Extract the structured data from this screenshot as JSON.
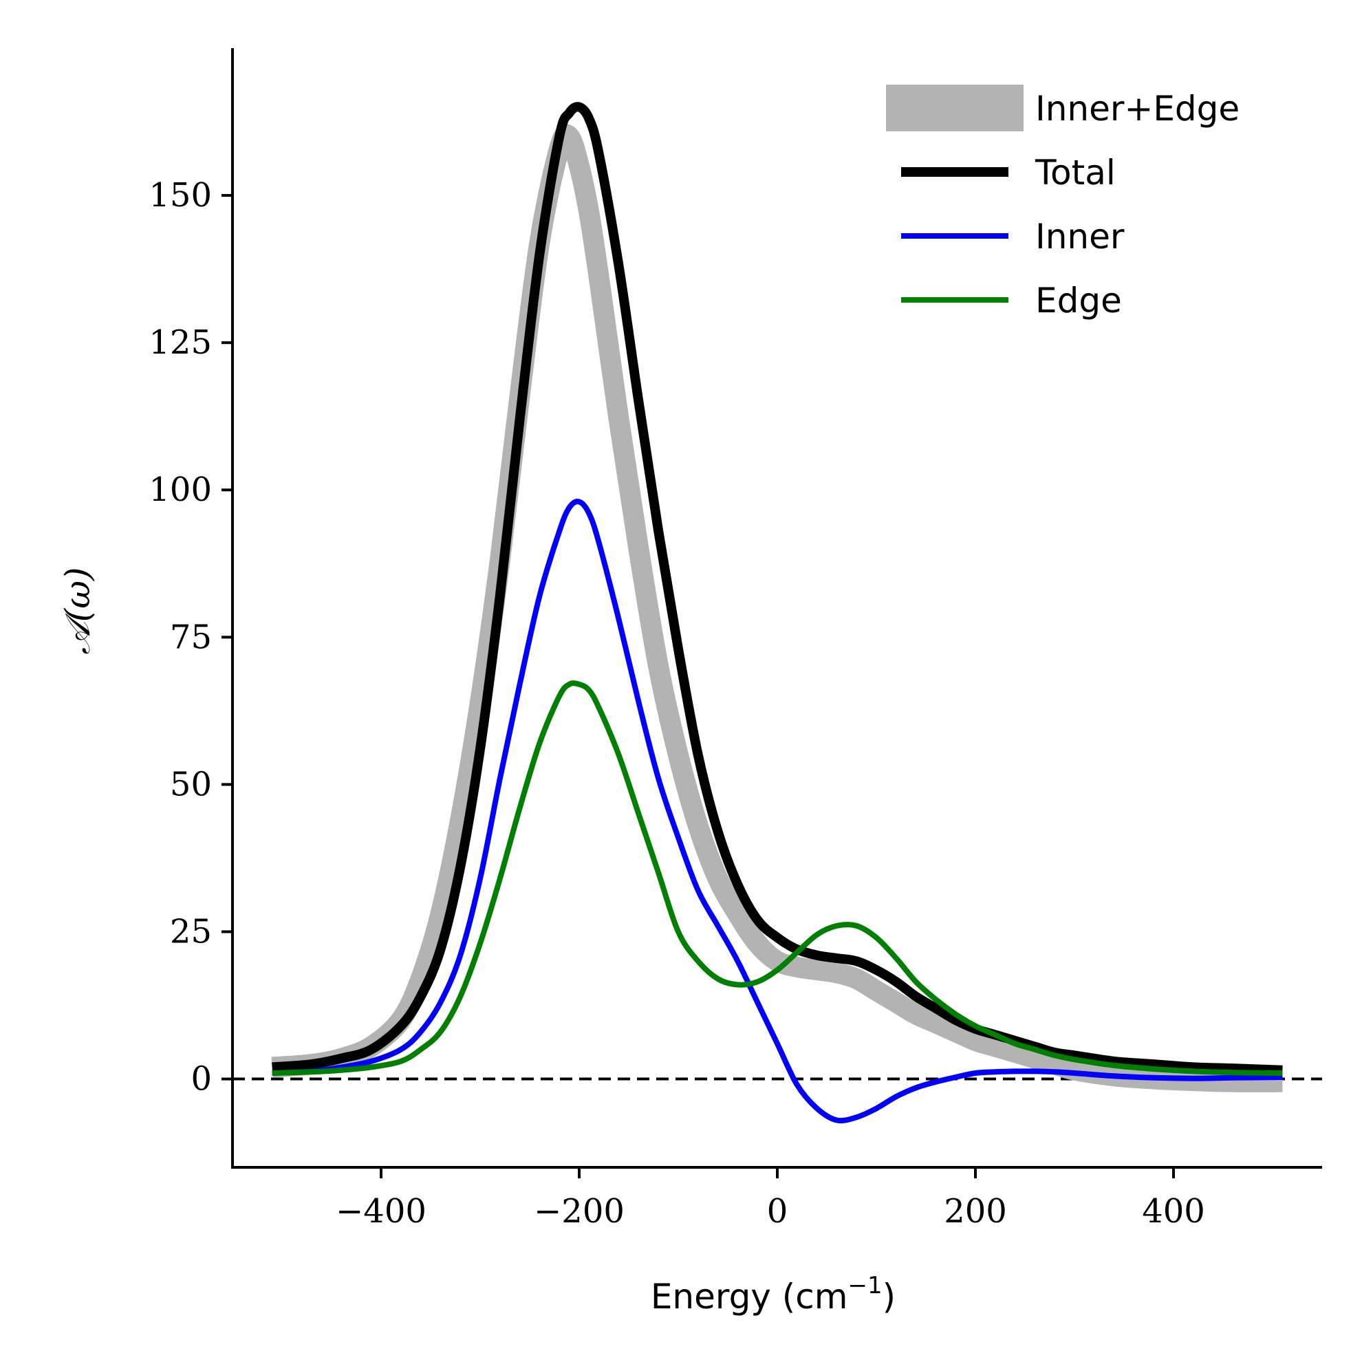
{
  "chart_data": {
    "type": "line",
    "title": "",
    "xlabel": "Energy (cm",
    "xlabel_superscript": "−1",
    "xlabel_suffix": ")",
    "ylabel": "𝒜(ω)",
    "xlim": [
      -550,
      550
    ],
    "ylim": [
      -15,
      175
    ],
    "xticks": [
      -400,
      -200,
      0,
      200,
      400
    ],
    "xtick_labels": [
      "−400",
      "−200",
      "0",
      "200",
      "400"
    ],
    "yticks": [
      0,
      25,
      50,
      75,
      100,
      125,
      150
    ],
    "ytick_labels": [
      "0",
      "25",
      "50",
      "75",
      "100",
      "125",
      "150"
    ],
    "zero_line": {
      "y": 0,
      "style": "dashed",
      "color": "#000000"
    },
    "legend_position": "top-right",
    "x": [
      -510,
      -470,
      -440,
      -410,
      -380,
      -360,
      -340,
      -320,
      -300,
      -280,
      -260,
      -240,
      -220,
      -210,
      -200,
      -190,
      -180,
      -160,
      -140,
      -120,
      -100,
      -80,
      -60,
      -40,
      -20,
      0,
      20,
      40,
      60,
      80,
      100,
      120,
      140,
      160,
      180,
      200,
      220,
      240,
      260,
      280,
      300,
      340,
      380,
      420,
      460,
      510
    ],
    "series": [
      {
        "name": "Inner+Edge",
        "color": "#b3b3b3",
        "values": [
          2,
          2.5,
          3.5,
          5.5,
          10,
          17,
          28,
          44,
          64,
          88,
          116,
          142,
          158,
          160,
          155,
          147,
          136,
          112,
          90,
          70,
          55,
          43,
          34,
          28,
          23,
          20,
          19,
          18.5,
          18,
          17,
          15,
          13,
          11,
          9.5,
          8,
          6.5,
          5.5,
          4.5,
          3.5,
          2.5,
          1.5,
          0.5,
          0,
          -0.3,
          -0.5,
          -0.5
        ]
      },
      {
        "name": "Total",
        "color": "#000000",
        "values": [
          2,
          2.5,
          3.5,
          5,
          9,
          14,
          22,
          36,
          56,
          82,
          112,
          140,
          160,
          164,
          165,
          163,
          157,
          138,
          115,
          93,
          73,
          55,
          42,
          33,
          27,
          24,
          22,
          21,
          20.5,
          20,
          18.5,
          16.5,
          14,
          12,
          10,
          8.5,
          7.5,
          6.5,
          5.5,
          4.5,
          4,
          3,
          2.5,
          2,
          1.8,
          1.5
        ]
      },
      {
        "name": "Inner",
        "color": "#0000ff",
        "values": [
          1,
          1.3,
          2,
          3,
          5,
          8,
          13,
          21,
          34,
          51,
          67,
          82,
          93,
          97,
          98,
          96,
          91,
          78,
          64,
          51,
          41,
          32,
          26,
          20,
          13,
          6,
          -1,
          -5,
          -7,
          -6.5,
          -5,
          -3,
          -1.5,
          -0.5,
          0.3,
          1,
          1.2,
          1.3,
          1.3,
          1.2,
          1,
          0.5,
          0.2,
          0.1,
          0.2,
          0.3
        ]
      },
      {
        "name": "Edge",
        "color": "#008000",
        "values": [
          1,
          1.2,
          1.5,
          2,
          3,
          5,
          8,
          14,
          23,
          34,
          46,
          57,
          65,
          67,
          67,
          66,
          63,
          55,
          45,
          35,
          25,
          20,
          17,
          16,
          16.5,
          18.5,
          21.5,
          24.5,
          26,
          26,
          24,
          20.5,
          16.5,
          13.5,
          11,
          9,
          7.5,
          6,
          5,
          4,
          3.3,
          2.3,
          1.7,
          1.3,
          1.1,
          1
        ]
      }
    ]
  }
}
